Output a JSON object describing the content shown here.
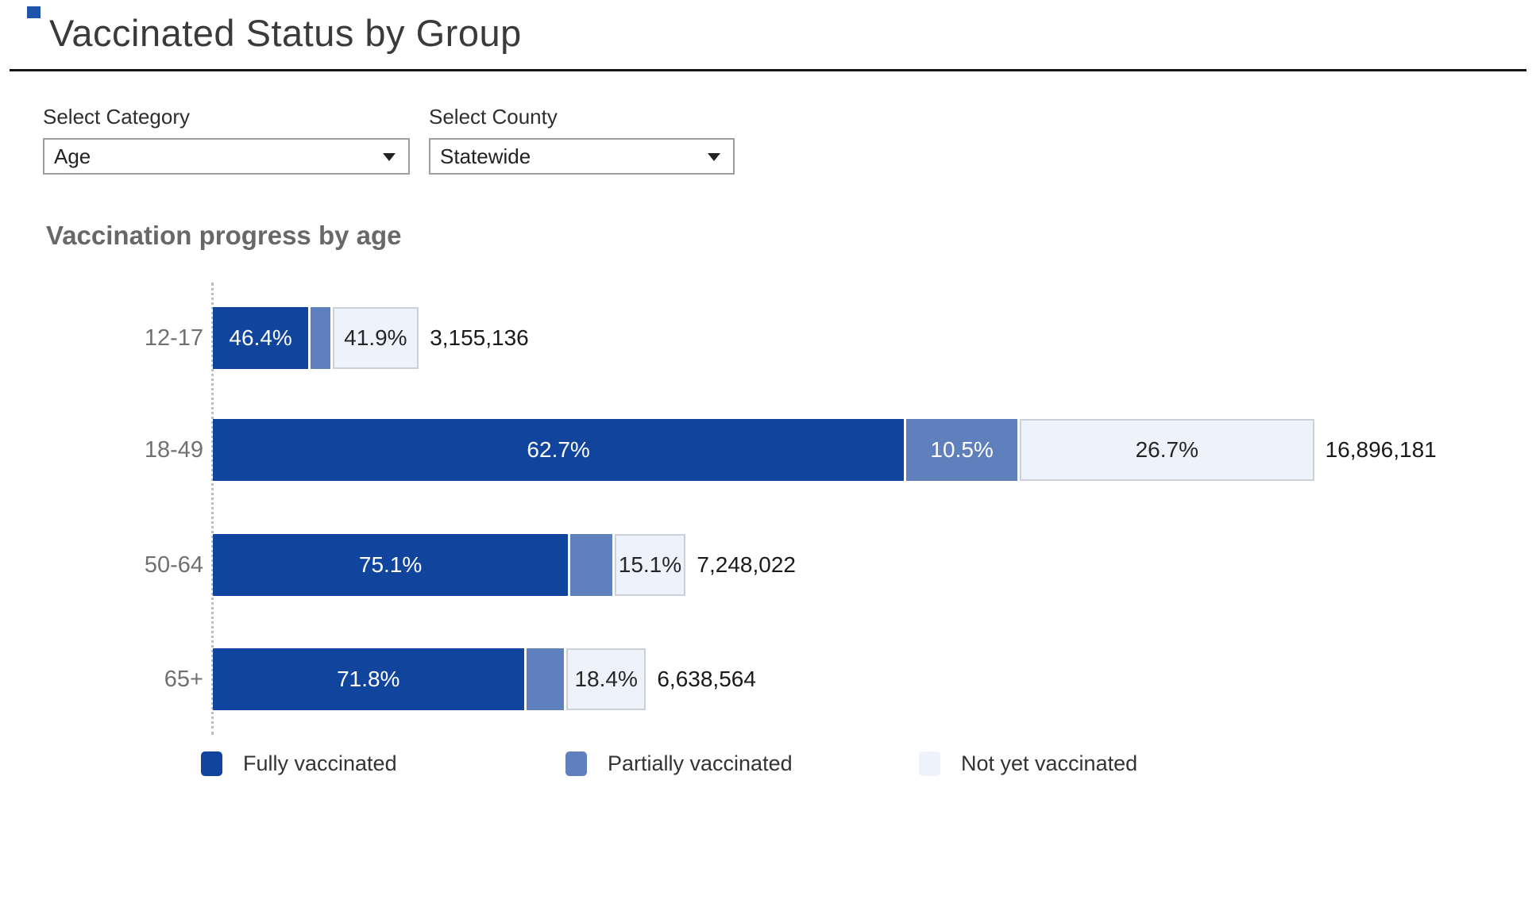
{
  "page": {
    "title": "Vaccinated Status by Group"
  },
  "filters": {
    "category_label": "Select Category",
    "category_value": "Age",
    "county_label": "Select County",
    "county_value": "Statewide"
  },
  "chart_data": {
    "type": "bar",
    "orientation": "horizontal-stacked",
    "title": "Vaccination progress by age",
    "categories": [
      "12-17",
      "18-49",
      "50-64",
      "65+"
    ],
    "series": [
      {
        "name": "Fully vaccinated",
        "unit": "%",
        "values": [
          46.4,
          62.7,
          75.1,
          71.8
        ]
      },
      {
        "name": "Partially vaccinated",
        "unit": "%",
        "values": [
          11.7,
          10.5,
          9.8,
          9.8
        ]
      },
      {
        "name": "Not yet vaccinated",
        "unit": "%",
        "values": [
          41.9,
          26.7,
          15.1,
          18.4
        ]
      }
    ],
    "totals": [
      3155136,
      16896181,
      7248022,
      6638564
    ],
    "totals_labels": [
      "3,155,136",
      "16,896,181",
      "7,248,022",
      "6,638,564"
    ],
    "segment_labels": [
      {
        "fully": "46.4%",
        "partial": "",
        "notyet": "41.9%"
      },
      {
        "fully": "62.7%",
        "partial": "10.5%",
        "notyet": "26.7%"
      },
      {
        "fully": "75.1%",
        "partial": "",
        "notyet": "15.1%"
      },
      {
        "fully": "71.8%",
        "partial": "",
        "notyet": "18.4%"
      }
    ],
    "legend": [
      "Fully vaccinated",
      "Partially vaccinated",
      "Not yet vaccinated"
    ],
    "legend_position": "bottom",
    "colors": {
      "fully": "#10449d",
      "partial": "#5f80bc",
      "notyet": "#eef2fa",
      "notyet_border": "#ccd1d9"
    },
    "layout_hints": {
      "bar_scaling": "bar length proportional to group total population",
      "axis_line": "dotted vertical baseline at bar start",
      "grid": "off"
    }
  }
}
